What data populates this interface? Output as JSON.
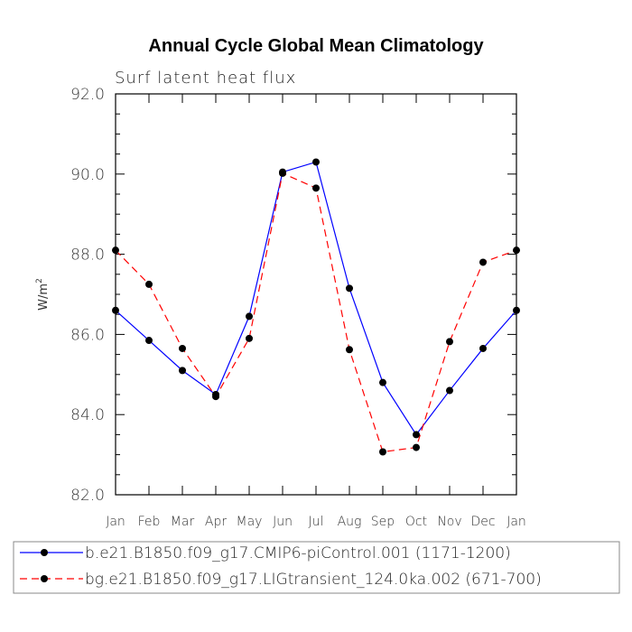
{
  "chart_data": {
    "type": "line",
    "title": "Annual Cycle Global Mean Climatology",
    "subtitle": "Surf latent heat flux",
    "ylabel": "W/m",
    "ylabel_sup": "2",
    "ylim": [
      82.0,
      92.0
    ],
    "yticks": [
      "82.0",
      "84.0",
      "86.0",
      "88.0",
      "90.0",
      "92.0"
    ],
    "categories": [
      "Jan",
      "Feb",
      "Mar",
      "Apr",
      "May",
      "Jun",
      "Jul",
      "Aug",
      "Sep",
      "Oct",
      "Nov",
      "Dec",
      "Jan"
    ],
    "grid": false,
    "legend_position": "bottom",
    "series": [
      {
        "name": "b.e21.B1850.f09_g17.CMIP6-piControl.001 (1171-1200)",
        "color": "#0000ff",
        "line_style": "solid",
        "values": [
          86.6,
          85.85,
          85.1,
          84.5,
          86.45,
          90.05,
          90.3,
          87.15,
          84.8,
          83.5,
          84.6,
          85.65,
          86.6
        ]
      },
      {
        "name": "bg.e21.B1850.f09_g17.LIGtransient_124.0ka.002 (671-700)",
        "color": "#ff0000",
        "line_style": "dashed",
        "values": [
          88.1,
          87.25,
          85.65,
          84.45,
          85.9,
          90.02,
          89.65,
          85.62,
          83.07,
          83.18,
          85.82,
          87.8,
          88.1
        ]
      }
    ]
  }
}
